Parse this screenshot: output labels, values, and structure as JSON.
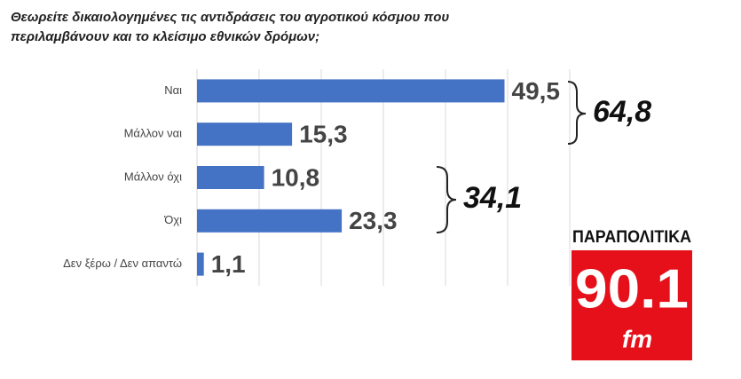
{
  "chart_data": {
    "type": "hbar",
    "title": [
      "Θεωρείτε δικαιολογημένες τις αντιδράσεις του αγροτικού κόσμου που",
      "περιλαμβάνουν και το κλείσιμο εθνικών δρόμων;"
    ],
    "categories": [
      "Ναι",
      "Μάλλον ναι",
      "Μάλλον όχι",
      "Όχι",
      "Δεν ξέρω / Δεν απαντώ"
    ],
    "values": [
      49.5,
      15.3,
      10.8,
      23.3,
      1.1
    ],
    "value_labels": [
      "49,5",
      "15,3",
      "10,8",
      "23,3",
      "1,1"
    ],
    "color": "#4472c4",
    "xlim": [
      0,
      60
    ],
    "xticks": [
      0,
      10,
      20,
      30,
      40,
      50,
      60
    ],
    "grid": true,
    "annotations": [
      "64,8",
      "34,1"
    ],
    "logo": {
      "brand": "ΠΑΡΑΠΟΛΙΤΙΚΑ",
      "frequency": "90.1",
      "unit": "fm"
    }
  }
}
